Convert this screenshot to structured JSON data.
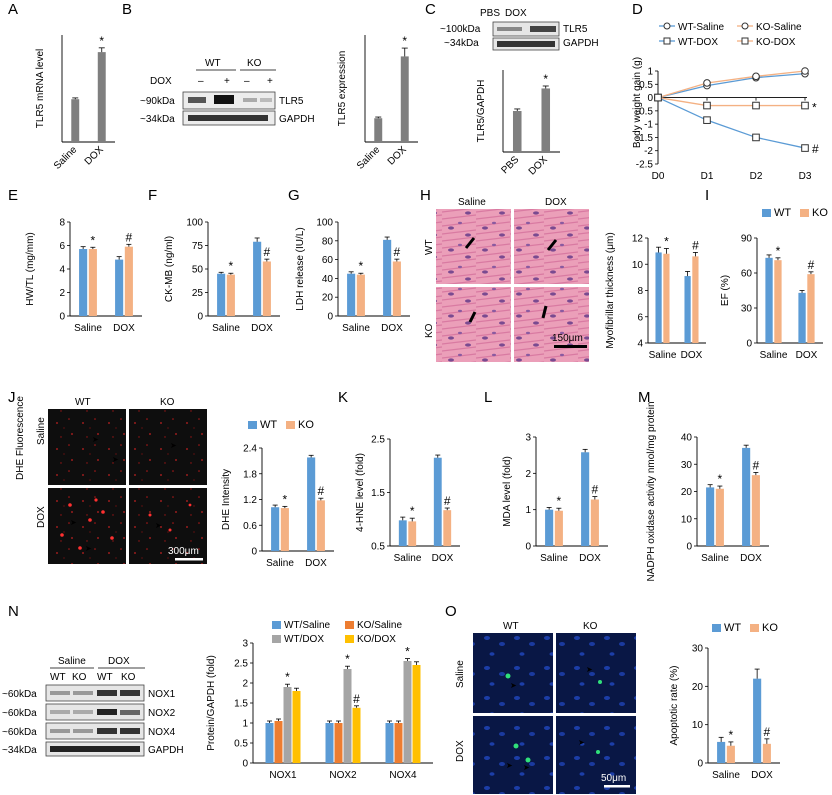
{
  "colors": {
    "wt": "#5B9BD5",
    "ko": "#F4B183",
    "gray": "#7F7F7F",
    "nOrange": "#ED7D31",
    "nGray": "#A5A5A5",
    "nYellow": "#FFC000",
    "micHE": "#e8a0b8",
    "micDark": "#101010",
    "micBlue": "#0a1a55"
  },
  "panels": {
    "A": "A",
    "B": "B",
    "C": "C",
    "D": "D",
    "E": "E",
    "F": "F",
    "G": "G",
    "H": "H",
    "I": "I",
    "J": "J",
    "K": "K",
    "L": "L",
    "M": "M",
    "N": "N",
    "O": "O"
  },
  "blotB": {
    "wt": "WT",
    "ko": "KO",
    "dox": "DOX",
    "minus1": "–",
    "plus1": "+",
    "minus2": "–",
    "plus2": "+",
    "mw1": "~90kDa",
    "mw2": "~34kDa",
    "band1": "TLR5",
    "band2": "GAPDH"
  },
  "blotC": {
    "pbs": "PBS",
    "dox": "DOX",
    "mw1": "~100kDa",
    "mw2": "~34kDa",
    "band1": "TLR5",
    "band2": "GAPDH"
  },
  "blotN": {
    "saline": "Saline",
    "dox": "DOX",
    "wt1": "WT",
    "ko1": "KO",
    "wt2": "WT",
    "ko2": "KO",
    "mw1": "~60kDa",
    "mw2": "~60kDa",
    "mw3": "~60kDa",
    "mw4": "~34kDa",
    "band1": "NOX1",
    "band2": "NOX2",
    "band3": "NOX4",
    "band4": "GAPDH"
  },
  "micH": {
    "saline": "Saline",
    "dox": "DOX",
    "wt": "WT",
    "ko": "KO",
    "scale": "150μm"
  },
  "micJ": {
    "wt": "WT",
    "ko": "KO",
    "saline": "Saline",
    "dox": "DOX",
    "side": "DHE Fluorescence",
    "scale": "300μm"
  },
  "micO": {
    "wt": "WT",
    "ko": "KO",
    "saline": "Saline",
    "dox": "DOX",
    "scale": "50μm"
  },
  "chart_data": [
    {
      "panel": "A",
      "type": "bar",
      "categories": [
        "Saline",
        "DOX"
      ],
      "values": [
        1.0,
        2.1
      ],
      "errors": [
        0.03,
        0.1
      ],
      "ylabel": "TLR5 mRNA level",
      "ylim": [
        0,
        2.5
      ],
      "yticks": [],
      "sig": [
        "",
        "*"
      ]
    },
    {
      "panel": "B",
      "type": "bar",
      "categories": [
        "Saline",
        "DOX"
      ],
      "values": [
        1.0,
        3.6
      ],
      "errors": [
        0.05,
        0.35
      ],
      "ylabel": "TLR5 expression",
      "ylim": [
        0,
        4.5
      ],
      "yticks": [],
      "sig": [
        "",
        "*"
      ]
    },
    {
      "panel": "C",
      "type": "bar",
      "categories": [
        "PBS",
        "DOX"
      ],
      "values": [
        1.0,
        1.55
      ],
      "errors": [
        0.05,
        0.06
      ],
      "ylabel": "TLR5/GAPDH",
      "ylim": [
        0,
        2
      ],
      "yticks": [],
      "sig": [
        "",
        "*"
      ]
    },
    {
      "panel": "D",
      "type": "line",
      "x": [
        "D0",
        "D1",
        "D2",
        "D3"
      ],
      "title": "Body weight gain (g)",
      "ylim": [
        -2.5,
        1.0
      ],
      "yticks": [
        1.0,
        0.5,
        0,
        -0.5,
        -1.0,
        -1.5,
        -2.0,
        -2.5
      ],
      "series": [
        {
          "name": "WT-Saline",
          "values": [
            0,
            0.45,
            0.75,
            0.9
          ],
          "color": "#5B9BD5",
          "marker": "circle"
        },
        {
          "name": "KO-Saline",
          "values": [
            0,
            0.55,
            0.8,
            1.0
          ],
          "color": "#F4B183",
          "marker": "circle"
        },
        {
          "name": "WT-DOX",
          "values": [
            0,
            -0.85,
            -1.5,
            -1.9
          ],
          "color": "#5B9BD5",
          "marker": "square"
        },
        {
          "name": "KO-DOX",
          "values": [
            0,
            -0.3,
            -0.3,
            -0.3
          ],
          "color": "#F4B183",
          "marker": "square"
        }
      ],
      "sig_labels": [
        "*",
        "#"
      ]
    },
    {
      "panel": "E",
      "type": "bar",
      "categories": [
        "Saline",
        "DOX"
      ],
      "series": [
        {
          "name": "WT",
          "values": [
            5.7,
            4.8
          ]
        },
        {
          "name": "KO",
          "values": [
            5.7,
            5.9
          ]
        }
      ],
      "errors": [
        [
          0.2,
          0.25
        ],
        [
          0.15,
          0.2
        ]
      ],
      "ylabel": "HW/TL (mg/mm)",
      "ylim": [
        0,
        8
      ],
      "yticks": [
        0,
        2,
        4,
        6,
        8
      ],
      "sig": [
        [
          "",
          ""
        ],
        [
          "*",
          "#"
        ]
      ]
    },
    {
      "panel": "F",
      "type": "bar",
      "categories": [
        "Saline",
        "DOX"
      ],
      "series": [
        {
          "name": "WT",
          "values": [
            45,
            79
          ]
        },
        {
          "name": "KO",
          "values": [
            44,
            58
          ]
        }
      ],
      "errors": [
        [
          1.5,
          4
        ],
        [
          1.5,
          2.5
        ]
      ],
      "ylabel": "CK-MB (ng/ml)",
      "ylim": [
        0,
        100
      ],
      "yticks": [
        0,
        25,
        50,
        75,
        100
      ],
      "sig": [
        [
          "",
          ""
        ],
        [
          "*",
          "#"
        ]
      ]
    },
    {
      "panel": "G",
      "type": "bar",
      "categories": [
        "Saline",
        "DOX"
      ],
      "series": [
        {
          "name": "WT",
          "values": [
            45,
            81
          ]
        },
        {
          "name": "KO",
          "values": [
            44,
            58
          ]
        }
      ],
      "errors": [
        [
          2,
          3
        ],
        [
          1.5,
          2.5
        ]
      ],
      "ylabel": "LDH release (IU/L)",
      "ylim": [
        0,
        100
      ],
      "yticks": [
        0,
        20,
        40,
        60,
        80,
        100
      ],
      "sig": [
        [
          "",
          ""
        ],
        [
          "*",
          "#"
        ]
      ]
    },
    {
      "panel": "H",
      "type": "bar",
      "categories": [
        "Saline",
        "DOX"
      ],
      "series": [
        {
          "name": "WT",
          "values": [
            10.9,
            9.1
          ]
        },
        {
          "name": "KO",
          "values": [
            10.8,
            10.6
          ]
        }
      ],
      "errors": [
        [
          0.4,
          0.35
        ],
        [
          0.4,
          0.3
        ]
      ],
      "ylabel": "Myofibrillar thickness (μm)",
      "ylim": [
        4,
        12
      ],
      "yticks": [
        4,
        6,
        8,
        10,
        12
      ],
      "sig": [
        [
          "",
          ""
        ],
        [
          "*",
          "#"
        ]
      ]
    },
    {
      "panel": "I",
      "type": "bar",
      "categories": [
        "Saline",
        "DOX"
      ],
      "series": [
        {
          "name": "WT",
          "values": [
            73,
            43
          ]
        },
        {
          "name": "KO",
          "values": [
            71,
            59
          ]
        }
      ],
      "errors": [
        [
          2.5,
          2
        ],
        [
          2,
          2
        ]
      ],
      "ylabel": "EF (%)",
      "ylim": [
        0,
        90
      ],
      "yticks": [
        0,
        30,
        60,
        90
      ],
      "sig": [
        [
          "",
          ""
        ],
        [
          "*",
          "#"
        ]
      ],
      "legend": "top"
    },
    {
      "panel": "J",
      "type": "bar",
      "categories": [
        "Saline",
        "DOX"
      ],
      "series": [
        {
          "name": "WT",
          "values": [
            1.02,
            2.18
          ]
        },
        {
          "name": "KO",
          "values": [
            1.0,
            1.18
          ]
        }
      ],
      "errors": [
        [
          0.05,
          0.05
        ],
        [
          0.04,
          0.05
        ]
      ],
      "ylabel": "DHE Intensity",
      "ylim": [
        0,
        2.4
      ],
      "yticks": [
        0,
        0.6,
        1.2,
        1.8,
        2.4
      ],
      "sig": [
        [
          "",
          ""
        ],
        [
          "*",
          "#"
        ]
      ],
      "legend": "top"
    },
    {
      "panel": "K",
      "type": "bar",
      "categories": [
        "Saline",
        "DOX"
      ],
      "series": [
        {
          "name": "WT",
          "values": [
            0.98,
            2.15
          ]
        },
        {
          "name": "KO",
          "values": [
            0.96,
            1.17
          ]
        }
      ],
      "errors": [
        [
          0.06,
          0.05
        ],
        [
          0.06,
          0.04
        ]
      ],
      "ylabel": "4-HNE level (fold)",
      "ylim": [
        0.5,
        2.5
      ],
      "yticks": [
        0.5,
        1.5,
        2.5
      ],
      "sig": [
        [
          "",
          ""
        ],
        [
          "*",
          "#"
        ]
      ]
    },
    {
      "panel": "L",
      "type": "bar",
      "categories": [
        "Saline",
        "DOX"
      ],
      "series": [
        {
          "name": "WT",
          "values": [
            1.0,
            2.58
          ]
        },
        {
          "name": "KO",
          "values": [
            0.97,
            1.28
          ]
        }
      ],
      "errors": [
        [
          0.06,
          0.08
        ],
        [
          0.07,
          0.08
        ]
      ],
      "ylabel": "MDA level (fold)",
      "ylim": [
        0,
        3
      ],
      "yticks": [
        0,
        1,
        2,
        3
      ],
      "sig": [
        [
          "",
          ""
        ],
        [
          "*",
          "#"
        ]
      ]
    },
    {
      "panel": "M",
      "type": "bar",
      "categories": [
        "Saline",
        "DOX"
      ],
      "series": [
        {
          "name": "WT",
          "values": [
            21.5,
            36
          ]
        },
        {
          "name": "KO",
          "values": [
            21,
            26
          ]
        }
      ],
      "errors": [
        [
          1,
          1
        ],
        [
          1,
          1
        ]
      ],
      "ylabel": "NADPH oxidase activity nmol/mg protein",
      "ylim": [
        0,
        40
      ],
      "yticks": [
        0,
        10,
        20,
        30,
        40
      ],
      "sig": [
        [
          "",
          ""
        ],
        [
          "*",
          "#"
        ]
      ]
    },
    {
      "panel": "N",
      "type": "bar",
      "categories": [
        "NOX1",
        "NOX2",
        "NOX4"
      ],
      "series": [
        {
          "name": "WT/Saline",
          "values": [
            1.0,
            1.0,
            1.0
          ]
        },
        {
          "name": "KO/Saline",
          "values": [
            1.05,
            1.0,
            1.0
          ]
        },
        {
          "name": "WT/DOX",
          "values": [
            1.9,
            2.35,
            2.55
          ]
        },
        {
          "name": "KO/DOX",
          "values": [
            1.8,
            1.38,
            2.45
          ]
        }
      ],
      "errors": [
        [
          0.05,
          0.05,
          0.05
        ],
        [
          0.05,
          0.05,
          0.05
        ],
        [
          0.07,
          0.07,
          0.06
        ],
        [
          0.07,
          0.05,
          0.08
        ]
      ],
      "ylabel": "Protein/GAPDH (fold)",
      "ylim": [
        0,
        3
      ],
      "yticks": [
        0,
        0.5,
        1,
        1.5,
        2,
        2.5,
        3
      ],
      "sig": [
        [
          "",
          "",
          ""
        ],
        [
          "",
          "",
          ""
        ],
        [
          "*",
          "*",
          "*"
        ],
        [
          "",
          "#",
          ""
        ]
      ],
      "legend": "top-2x2"
    },
    {
      "panel": "O",
      "type": "bar",
      "categories": [
        "Saline",
        "DOX"
      ],
      "series": [
        {
          "name": "WT",
          "values": [
            5.5,
            22
          ]
        },
        {
          "name": "KO",
          "values": [
            4.5,
            5
          ]
        }
      ],
      "errors": [
        [
          1.2,
          2.5
        ],
        [
          1,
          1.3
        ]
      ],
      "ylabel": "Apoptotic rate (%)",
      "ylim": [
        0,
        30
      ],
      "yticks": [
        0,
        10,
        20,
        30
      ],
      "sig": [
        [
          "",
          ""
        ],
        [
          "*",
          "#"
        ]
      ],
      "legend": "top"
    }
  ]
}
